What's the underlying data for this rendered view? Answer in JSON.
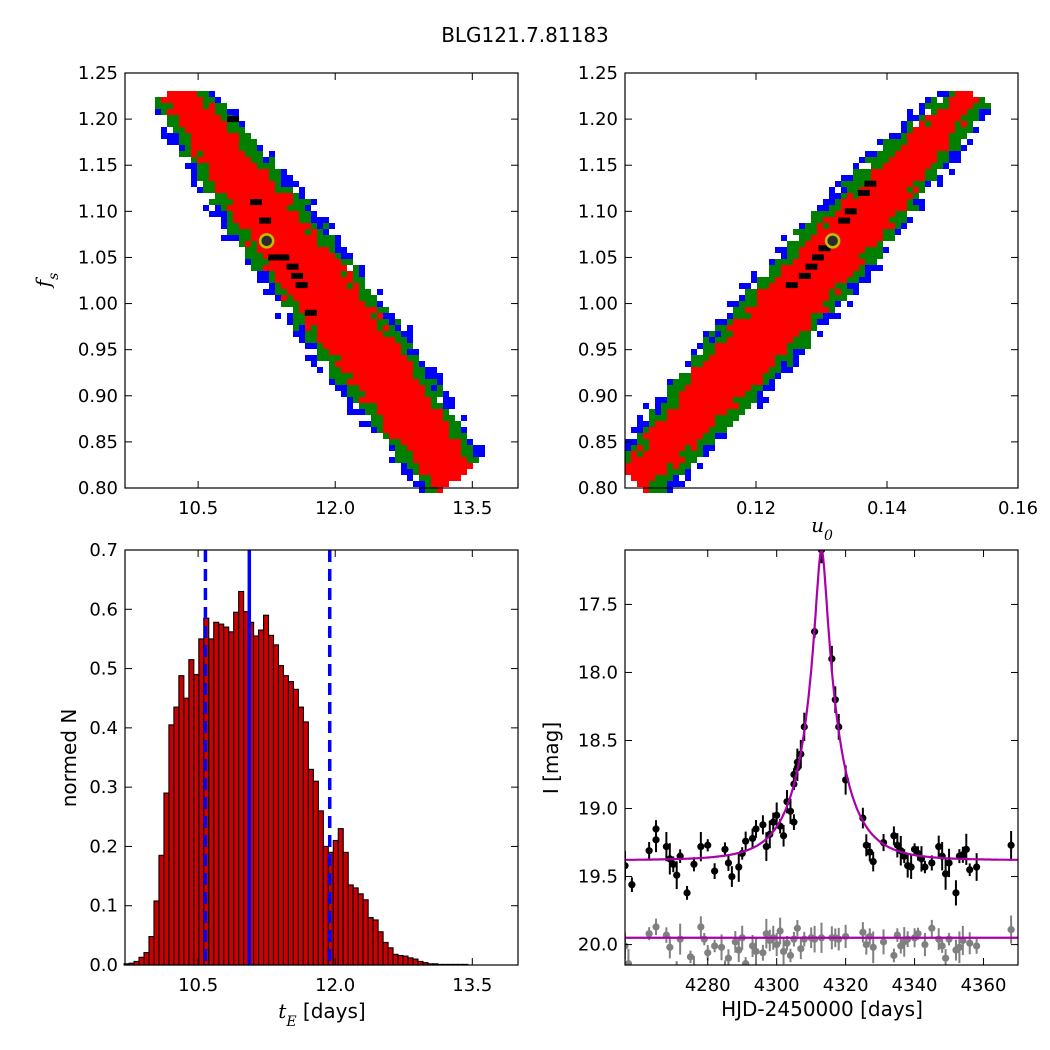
{
  "figure_title": "BLG121.7.81183",
  "colors": {
    "sigma3": "#0000ff",
    "sigma2": "#007f00",
    "sigma1": "#ff0000",
    "best_cells": "#000000",
    "best_marker_fill": "#2b2b2b",
    "best_marker_ring": "#bfbf00",
    "hist_fill": "#cc0000",
    "hist_edge": "#000000",
    "vline": "#0000ff",
    "model_curve": "#aa00aa",
    "data_main": "#000000",
    "data_residual": "#808080"
  },
  "chart_data": [
    {
      "id": "tE_fs",
      "type": "heatmap",
      "xlabel": "",
      "ylabel": "f_s",
      "xlim": [
        9.7,
        14.0
      ],
      "ylim": [
        0.8,
        1.25
      ],
      "xticks": [
        "10.5",
        "12.0",
        "13.5"
      ],
      "xtick_values": [
        10.5,
        12.0,
        13.5
      ],
      "yticks": [
        "0.80",
        "0.85",
        "0.90",
        "0.95",
        "1.00",
        "1.05",
        "1.10",
        "1.15",
        "1.20",
        "1.25"
      ],
      "ytick_values": [
        0.8,
        0.85,
        0.9,
        0.95,
        1.0,
        1.05,
        1.1,
        1.15,
        1.2,
        1.25
      ],
      "levels": [
        "3sigma",
        "2sigma",
        "1sigma"
      ],
      "ridge_x_start": 10.3,
      "ridge_x_end": 13.3,
      "ridge_y_top": 1.225,
      "ridge_y_bottom": 0.815,
      "best_fit": {
        "x": 11.25,
        "y": 1.068
      },
      "best_cells": [
        [
          11.2,
          1.09
        ],
        [
          11.3,
          1.05
        ],
        [
          11.4,
          1.05
        ],
        [
          11.5,
          1.04
        ],
        [
          11.55,
          1.03
        ],
        [
          11.6,
          1.02
        ],
        [
          11.1,
          1.11
        ],
        [
          11.7,
          0.99
        ],
        [
          10.85,
          1.2
        ]
      ]
    },
    {
      "id": "u0_fs",
      "type": "heatmap",
      "xlabel": "u_0",
      "ylabel": "",
      "xlim": [
        0.1,
        0.16
      ],
      "ylim": [
        0.8,
        1.25
      ],
      "xticks": [
        "0.12",
        "0.14",
        "0.16"
      ],
      "xtick_values": [
        0.12,
        0.14,
        0.16
      ],
      "yticks": [
        "0.80",
        "0.85",
        "0.90",
        "0.95",
        "1.00",
        "1.05",
        "1.10",
        "1.15",
        "1.20",
        "1.25"
      ],
      "ytick_values": [
        0.8,
        0.85,
        0.9,
        0.95,
        1.0,
        1.05,
        1.1,
        1.15,
        1.2,
        1.25
      ],
      "levels": [
        "3sigma",
        "2sigma",
        "1sigma"
      ],
      "ridge_x_start": 0.1025,
      "ridge_x_end": 0.1525,
      "ridge_y_bottom": 0.815,
      "ridge_y_top": 1.225,
      "best_fit": {
        "x": 0.1317,
        "y": 1.068
      },
      "best_cells": [
        [
          0.13,
          1.06
        ],
        [
          0.129,
          1.05
        ],
        [
          0.128,
          1.04
        ],
        [
          0.127,
          1.03
        ],
        [
          0.133,
          1.09
        ],
        [
          0.134,
          1.1
        ],
        [
          0.136,
          1.12
        ],
        [
          0.125,
          1.02
        ],
        [
          0.137,
          1.13
        ]
      ]
    },
    {
      "id": "tE_hist",
      "type": "bar",
      "xlabel": "t_E",
      "xlabel_unit": "[days]",
      "ylabel": "normed N",
      "xlim": [
        9.7,
        14.0
      ],
      "ylim": [
        0.0,
        0.7
      ],
      "xticks": [
        "10.5",
        "12.0",
        "13.5"
      ],
      "xtick_values": [
        10.5,
        12.0,
        13.5
      ],
      "yticks": [
        "0.0",
        "0.1",
        "0.2",
        "0.3",
        "0.4",
        "0.5",
        "0.6",
        "0.7"
      ],
      "ytick_values": [
        0.0,
        0.1,
        0.2,
        0.3,
        0.4,
        0.5,
        0.6,
        0.7
      ],
      "bin_start": 9.69,
      "bin_width": 0.0545,
      "values": [
        0.002,
        0.003,
        0.006,
        0.013,
        0.021,
        0.048,
        0.108,
        0.185,
        0.29,
        0.405,
        0.435,
        0.488,
        0.45,
        0.515,
        0.49,
        0.55,
        0.585,
        0.55,
        0.578,
        0.575,
        0.57,
        0.562,
        0.595,
        0.63,
        0.596,
        0.578,
        0.555,
        0.565,
        0.59,
        0.556,
        0.54,
        0.505,
        0.488,
        0.478,
        0.465,
        0.435,
        0.41,
        0.33,
        0.31,
        0.26,
        0.2,
        0.19,
        0.21,
        0.23,
        0.19,
        0.135,
        0.13,
        0.12,
        0.11,
        0.08,
        0.076,
        0.056,
        0.038,
        0.029,
        0.018,
        0.016,
        0.015,
        0.012,
        0.01,
        0.006,
        0.004,
        0.002,
        0.002,
        0.001,
        0.001,
        0.001,
        0.001,
        0.001,
        0.001
      ],
      "vlines_dashed": [
        10.58,
        11.94
      ],
      "vline_solid": 11.06
    },
    {
      "id": "lightcurve",
      "type": "scatter",
      "xlabel": "HJD-2450000 [days]",
      "ylabel": "I [mag]",
      "xlim": [
        4256,
        4370
      ],
      "ylim": [
        20.15,
        17.1
      ],
      "xticks": [
        "4280",
        "4300",
        "4320",
        "4340",
        "4360"
      ],
      "xtick_values": [
        4280,
        4300,
        4320,
        4340,
        4360
      ],
      "yticks": [
        "17.5",
        "18.0",
        "18.5",
        "19.0",
        "19.5",
        "20.0"
      ],
      "ytick_values": [
        17.5,
        18.0,
        18.5,
        19.0,
        19.5,
        20.0
      ],
      "model": {
        "baseline": 19.38,
        "t0": 4313.0,
        "peak_mag": 17.1,
        "u0": 0.132,
        "tE": 11.06,
        "fs": 1.068
      },
      "residual_baseline": 19.95,
      "series": [
        {
          "role": "data",
          "points": [
            [
              4256,
              19.42
            ],
            [
              4258,
              19.56
            ],
            [
              4263,
              19.31
            ],
            [
              4265,
              19.15
            ],
            [
              4265,
              19.23
            ],
            [
              4268,
              19.28
            ],
            [
              4269,
              19.37
            ],
            [
              4270,
              19.41
            ],
            [
              4271,
              19.49
            ],
            [
              4272,
              19.35
            ],
            [
              4274,
              19.62
            ],
            [
              4276,
              19.41
            ],
            [
              4278,
              19.28
            ],
            [
              4280,
              19.27
            ],
            [
              4282,
              19.46
            ],
            [
              4285,
              19.3
            ],
            [
              4286,
              19.4
            ],
            [
              4287,
              19.5
            ],
            [
              4289,
              19.43
            ],
            [
              4290,
              19.33
            ],
            [
              4291,
              19.24
            ],
            [
              4293,
              19.22
            ],
            [
              4294,
              19.15
            ],
            [
              4296,
              19.12
            ],
            [
              4297,
              19.28
            ],
            [
              4298,
              19.19
            ],
            [
              4299,
              19.1
            ],
            [
              4300,
              19.05
            ],
            [
              4301,
              19.13
            ],
            [
              4302,
              19.2
            ],
            [
              4303,
              18.95
            ],
            [
              4304,
              19.02
            ],
            [
              4305,
              19.1
            ],
            [
              4305,
              18.82
            ],
            [
              4305,
              18.75
            ],
            [
              4306,
              18.7
            ],
            [
              4306,
              18.66
            ],
            [
              4307,
              18.6
            ],
            [
              4308,
              18.4
            ],
            [
              4311,
              17.7
            ],
            [
              4313,
              17.1
            ],
            [
              4316,
              17.9
            ],
            [
              4317,
              18.2
            ],
            [
              4318,
              18.4
            ],
            [
              4320,
              18.79
            ],
            [
              4325,
              19.07
            ],
            [
              4326,
              19.27
            ],
            [
              4327,
              19.32
            ],
            [
              4328,
              19.39
            ],
            [
              4331,
              19.25
            ],
            [
              4334,
              19.2
            ],
            [
              4335,
              19.27
            ],
            [
              4336,
              19.31
            ],
            [
              4337,
              19.35
            ],
            [
              4338,
              19.42
            ],
            [
              4339,
              19.43
            ],
            [
              4340,
              19.3
            ],
            [
              4341,
              19.33
            ],
            [
              4342,
              19.37
            ],
            [
              4343,
              19.43
            ],
            [
              4345,
              19.4
            ],
            [
              4347,
              19.28
            ],
            [
              4348,
              19.35
            ],
            [
              4349,
              19.48
            ],
            [
              4350,
              19.4
            ],
            [
              4352,
              19.62
            ],
            [
              4353,
              19.35
            ],
            [
              4354,
              19.34
            ],
            [
              4355,
              19.3
            ],
            [
              4356,
              19.45
            ],
            [
              4358,
              19.43
            ],
            [
              4368,
              19.27
            ]
          ]
        },
        {
          "role": "residual",
          "points": [
            [
              4256,
              20.01
            ],
            [
              4257,
              20.14
            ],
            [
              4263,
              19.92
            ],
            [
              4265,
              19.87
            ],
            [
              4268,
              19.93
            ],
            [
              4269,
              20.02
            ],
            [
              4271,
              20.2
            ],
            [
              4272,
              19.96
            ],
            [
              4275,
              20.09
            ],
            [
              4276,
              20.18
            ],
            [
              4278,
              19.87
            ],
            [
              4279,
              19.96
            ],
            [
              4280,
              20.06
            ],
            [
              4282,
              20.01
            ],
            [
              4284,
              20.02
            ],
            [
              4285,
              20.17
            ],
            [
              4286,
              20.1
            ],
            [
              4288,
              19.98
            ],
            [
              4289,
              20.04
            ],
            [
              4290,
              19.95
            ],
            [
              4291,
              20.14
            ],
            [
              4293,
              20.01
            ],
            [
              4294,
              20.05
            ],
            [
              4296,
              20.06
            ],
            [
              4297,
              19.92
            ],
            [
              4298,
              19.97
            ],
            [
              4299,
              19.95
            ],
            [
              4300,
              20.0
            ],
            [
              4301,
              19.9
            ],
            [
              4302,
              20.05
            ],
            [
              4303,
              19.99
            ],
            [
              4304,
              20.08
            ],
            [
              4305,
              19.96
            ],
            [
              4306,
              19.88
            ],
            [
              4307,
              20.03
            ],
            [
              4308,
              19.96
            ],
            [
              4310,
              19.95
            ],
            [
              4311,
              19.96
            ],
            [
              4313,
              19.95
            ],
            [
              4316,
              19.95
            ],
            [
              4317,
              19.95
            ],
            [
              4318,
              19.96
            ],
            [
              4320,
              19.94
            ],
            [
              4325,
              19.91
            ],
            [
              4326,
              20.0
            ],
            [
              4327,
              19.94
            ],
            [
              4328,
              20.02
            ],
            [
              4331,
              19.98
            ],
            [
              4334,
              20.08
            ],
            [
              4335,
              19.93
            ],
            [
              4336,
              20.01
            ],
            [
              4337,
              19.98
            ],
            [
              4338,
              19.96
            ],
            [
              4340,
              19.95
            ],
            [
              4341,
              19.92
            ],
            [
              4343,
              20.0
            ],
            [
              4345,
              19.88
            ],
            [
              4347,
              19.96
            ],
            [
              4348,
              20.01
            ],
            [
              4349,
              20.1
            ],
            [
              4350,
              19.96
            ],
            [
              4352,
              20.04
            ],
            [
              4353,
              20.02
            ],
            [
              4354,
              19.97
            ],
            [
              4356,
              19.99
            ],
            [
              4358,
              20.01
            ],
            [
              4368,
              19.89
            ]
          ]
        }
      ]
    }
  ]
}
